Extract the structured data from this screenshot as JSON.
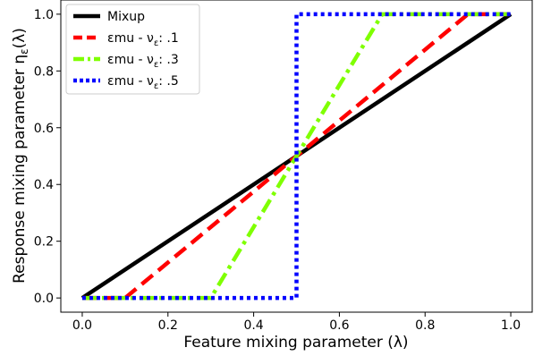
{
  "chart_data": {
    "type": "line",
    "title": "",
    "xlabel": "Feature mixing parameter (λ)",
    "ylabel": "Response mixing parameter η_ε(λ)",
    "xlim": [
      -0.05,
      1.05
    ],
    "ylim": [
      -0.05,
      1.05
    ],
    "xticks": [
      "0.0",
      "0.2",
      "0.4",
      "0.6",
      "0.8",
      "1.0"
    ],
    "yticks": [
      "0.0",
      "0.2",
      "0.4",
      "0.6",
      "0.8",
      "1.0"
    ],
    "grid": false,
    "legend_position": "top-left",
    "series": [
      {
        "name": "Mixup",
        "color": "#000000",
        "style": "solid",
        "x": [
          0,
          1
        ],
        "y": [
          0,
          1
        ]
      },
      {
        "name": "εmu - ν_ε: .1",
        "color": "#ff0000",
        "style": "dashed",
        "x": [
          0,
          0.1,
          0.9,
          1
        ],
        "y": [
          0,
          0,
          1,
          1
        ]
      },
      {
        "name": "εmu - ν_ε: .3",
        "color": "#7fff00",
        "style": "dashdot",
        "x": [
          0,
          0.3,
          0.7,
          1
        ],
        "y": [
          0,
          0,
          1,
          1
        ]
      },
      {
        "name": "εmu - ν_ε: .5",
        "color": "#0000ff",
        "style": "dotted",
        "x": [
          0,
          0.5,
          0.5,
          1
        ],
        "y": [
          0,
          0,
          1,
          1
        ]
      }
    ]
  }
}
